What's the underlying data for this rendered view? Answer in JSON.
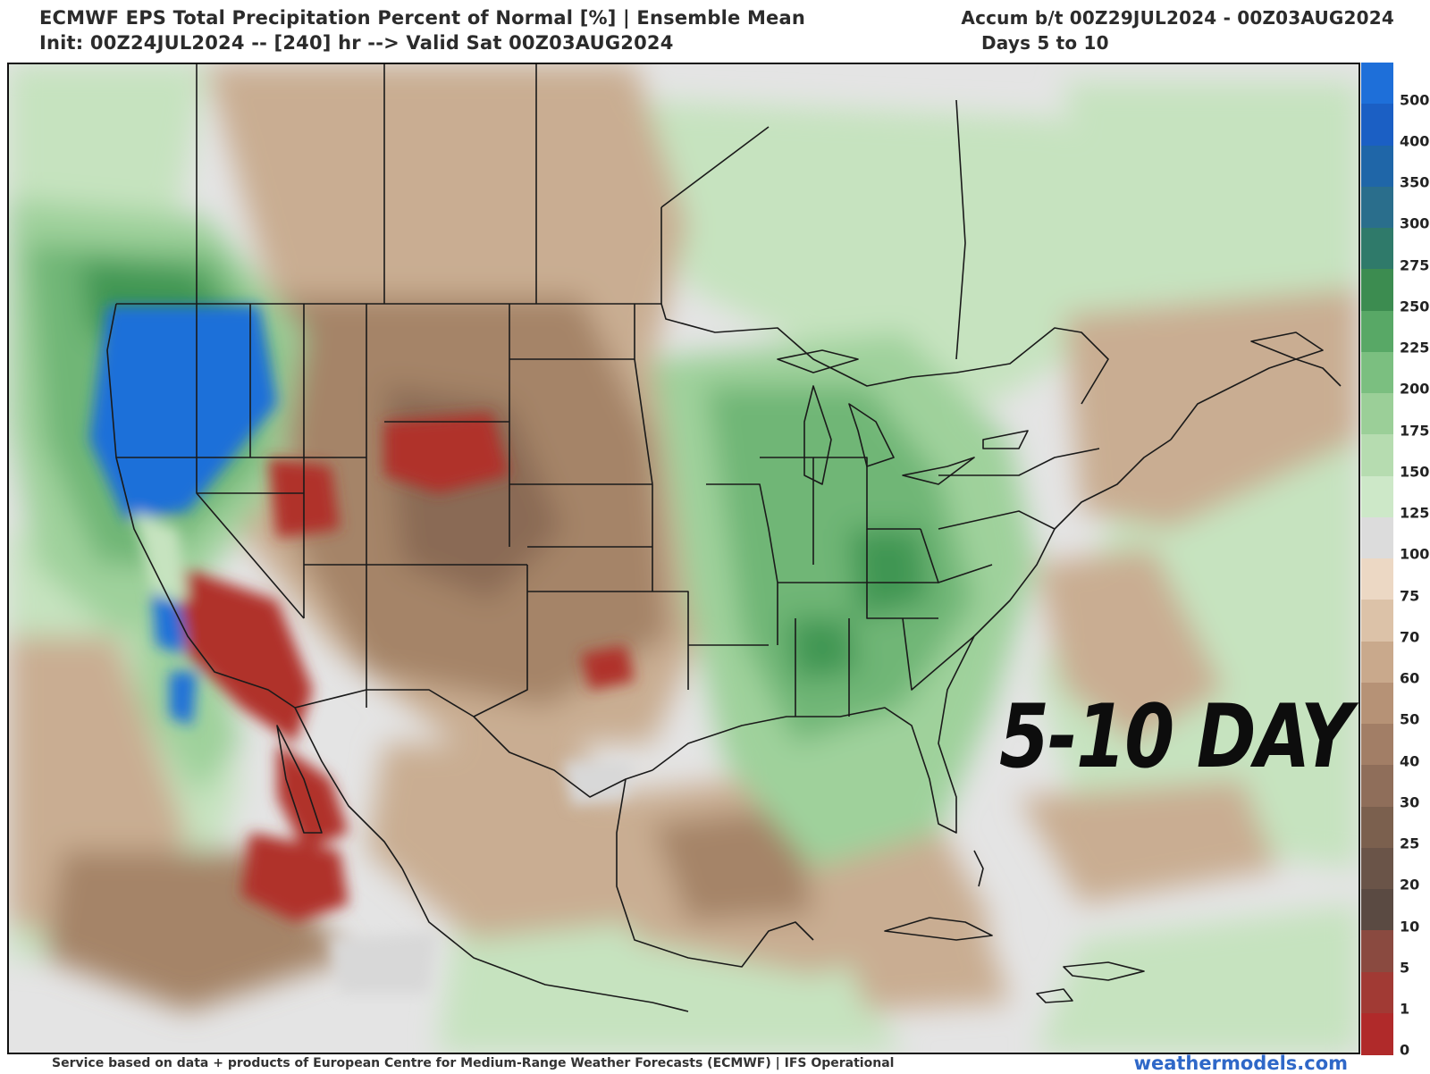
{
  "header": {
    "title_line1": "ECMWF EPS Total Precipitation Percent of Normal [%] | Ensemble Mean",
    "title_line2": "Init: 00Z24JUL2024 -- [240] hr --> Valid Sat 00Z03AUG2024",
    "accum": "Accum b/t 00Z29JUL2024 - 00Z03AUG2024",
    "days": "Days 5 to 10"
  },
  "stamp": "5-10 DAY",
  "footer": {
    "credit": "Service based on data + products of European Centre for Medium-Range Weather Forecasts (ECMWF) | IFS Operational",
    "brand": "weathermodels.com"
  },
  "colorbar": {
    "labels": [
      "500",
      "400",
      "350",
      "300",
      "275",
      "250",
      "225",
      "200",
      "175",
      "150",
      "125",
      "100",
      "75",
      "70",
      "60",
      "50",
      "40",
      "30",
      "25",
      "20",
      "10",
      "5",
      "1",
      "0"
    ],
    "colors": [
      "#1e6fd9",
      "#1b5fc4",
      "#1f66a8",
      "#2a6e8c",
      "#2f7a6a",
      "#3c8c50",
      "#58a866",
      "#7bbf80",
      "#9bcf98",
      "#b6dcb0",
      "#cde8c8",
      "#dcdcdc",
      "#ecd8c4",
      "#dcc2a8",
      "#c9a98c",
      "#b69276",
      "#a27e66",
      "#8f6e5a",
      "#7b604e",
      "#6a5448",
      "#5a4a42",
      "#8a4a40",
      "#a13a34",
      "#b02a2a"
    ]
  },
  "map_colors": {
    "ocean_base": "#e4e4e4",
    "near_normal": "#d8d8d8",
    "light_green": "#c6e3bf",
    "green": "#9fd19b",
    "mid_green": "#6fb676",
    "dark_green": "#3f9652",
    "blue": "#1e6fd9",
    "tan": "#c9ad92",
    "brown": "#a58468",
    "dark_brown": "#8a6a55",
    "red": "#b0302c",
    "border": "#1a1a1a"
  }
}
